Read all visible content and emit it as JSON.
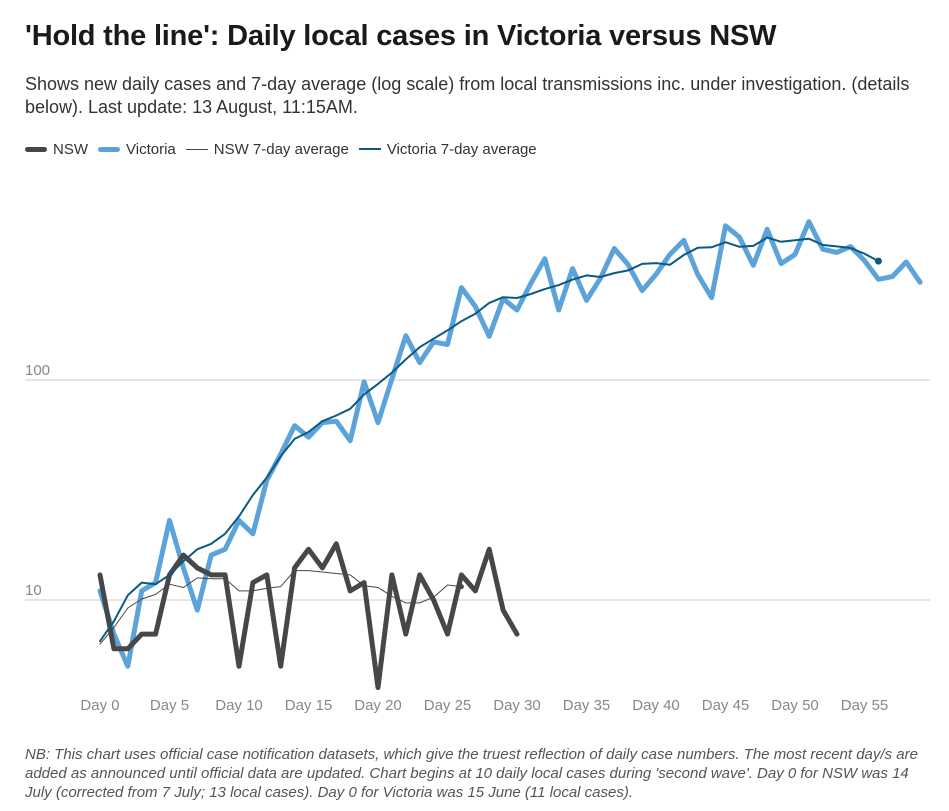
{
  "header": {
    "title": "'Hold the line': Daily local cases in Victoria versus NSW",
    "subtitle": "Shows new daily cases and 7-day average (log scale) from local transmissions inc. under investigation. (details below). Last update: 13 August, 11:15AM."
  },
  "legend": [
    {
      "label": "NSW",
      "color": "#474747"
    },
    {
      "label": "Victoria",
      "color": "#5ba3d9"
    },
    {
      "label": "NSW 7-day average",
      "color": "#474747"
    },
    {
      "label": "Victoria 7-day average",
      "color": "#0c5a84"
    }
  ],
  "footnote": "NB: This chart uses official case notification datasets, which give the truest reflection of daily case numbers. The most recent day/s are added as announced until official data are updated. Chart begins at 10 daily local cases during 'second wave'. Day 0 for NSW was 14 July (corrected from 7 July; 13 local cases). Day 0 for Victoria was 15 June (11 local cases).",
  "chart_data": {
    "type": "line",
    "title": "'Hold the line': Daily local cases in Victoria versus NSW",
    "xlabel": "",
    "ylabel": "",
    "y_scale": "log",
    "xlim": [
      0,
      59
    ],
    "ylim": [
      3.5,
      1200
    ],
    "x_ticks": [
      0,
      5,
      10,
      15,
      20,
      25,
      30,
      35,
      40,
      45,
      50,
      55
    ],
    "x_tick_labels": [
      "Day 0",
      "Day 5",
      "Day 10",
      "Day 15",
      "Day 20",
      "Day 25",
      "Day 30",
      "Day 35",
      "Day 40",
      "Day 45",
      "Day 50",
      "Day 55"
    ],
    "y_ticks": [
      10,
      100
    ],
    "y_tick_labels": [
      "10",
      "100"
    ],
    "grid": true,
    "series": [
      {
        "name": "NSW",
        "color": "#474747",
        "width": 5,
        "x_start": 0,
        "values": [
          13,
          6,
          6,
          7,
          7,
          13,
          16,
          14,
          13,
          13,
          5,
          12,
          13,
          5,
          14,
          17,
          14,
          18,
          11,
          12,
          4,
          13,
          7,
          13,
          10,
          7,
          13,
          11,
          17,
          9,
          7
        ]
      },
      {
        "name": "Victoria",
        "color": "#5ba3d9",
        "width": 5,
        "x_start": 0,
        "values": [
          11,
          7,
          5,
          11,
          12,
          23,
          14,
          9,
          16,
          17,
          23,
          20,
          35,
          46,
          62,
          55,
          64,
          65,
          53,
          98,
          64,
          101,
          159,
          120,
          149,
          145,
          263,
          216,
          158,
          234,
          208,
          275,
          356,
          208,
          321,
          230,
          290,
          396,
          334,
          255,
          302,
          372,
          431,
          302,
          237,
          502,
          446,
          332,
          484,
          338,
          372,
          524,
          393,
          380,
          404,
          349,
          287,
          295,
          344,
          278
        ]
      },
      {
        "name": "NSW 7-day average",
        "color": "#474747",
        "width": 1,
        "x_start": 0,
        "values": [
          6.3,
          7.5,
          9.2,
          10.1,
          10.6,
          11.8,
          11.4,
          12.6,
          12.5,
          12.5,
          11,
          11,
          11.3,
          11.5,
          13.6,
          13.6,
          13.4,
          13.2,
          13,
          11.6,
          11.4,
          10.4,
          9.7,
          9.7,
          10.3,
          11.7,
          11.5
        ]
      },
      {
        "name": "Victoria 7-day average",
        "color": "#0c5a84",
        "width": 2,
        "x_start": 0,
        "values": [
          6.5,
          8,
          10.5,
          12,
          11.8,
          13,
          15,
          17,
          18,
          20,
          24,
          30,
          36,
          45,
          54,
          58,
          65,
          69,
          74,
          86,
          96,
          108,
          124,
          141,
          154,
          168,
          185,
          200,
          224,
          238,
          236,
          246,
          259,
          270,
          286,
          299,
          294,
          306,
          315,
          337,
          340,
          334,
          370,
          399,
          401,
          423,
          403,
          407,
          444,
          425,
          432,
          439,
          411,
          405,
          398,
          375,
          347
        ]
      }
    ]
  }
}
